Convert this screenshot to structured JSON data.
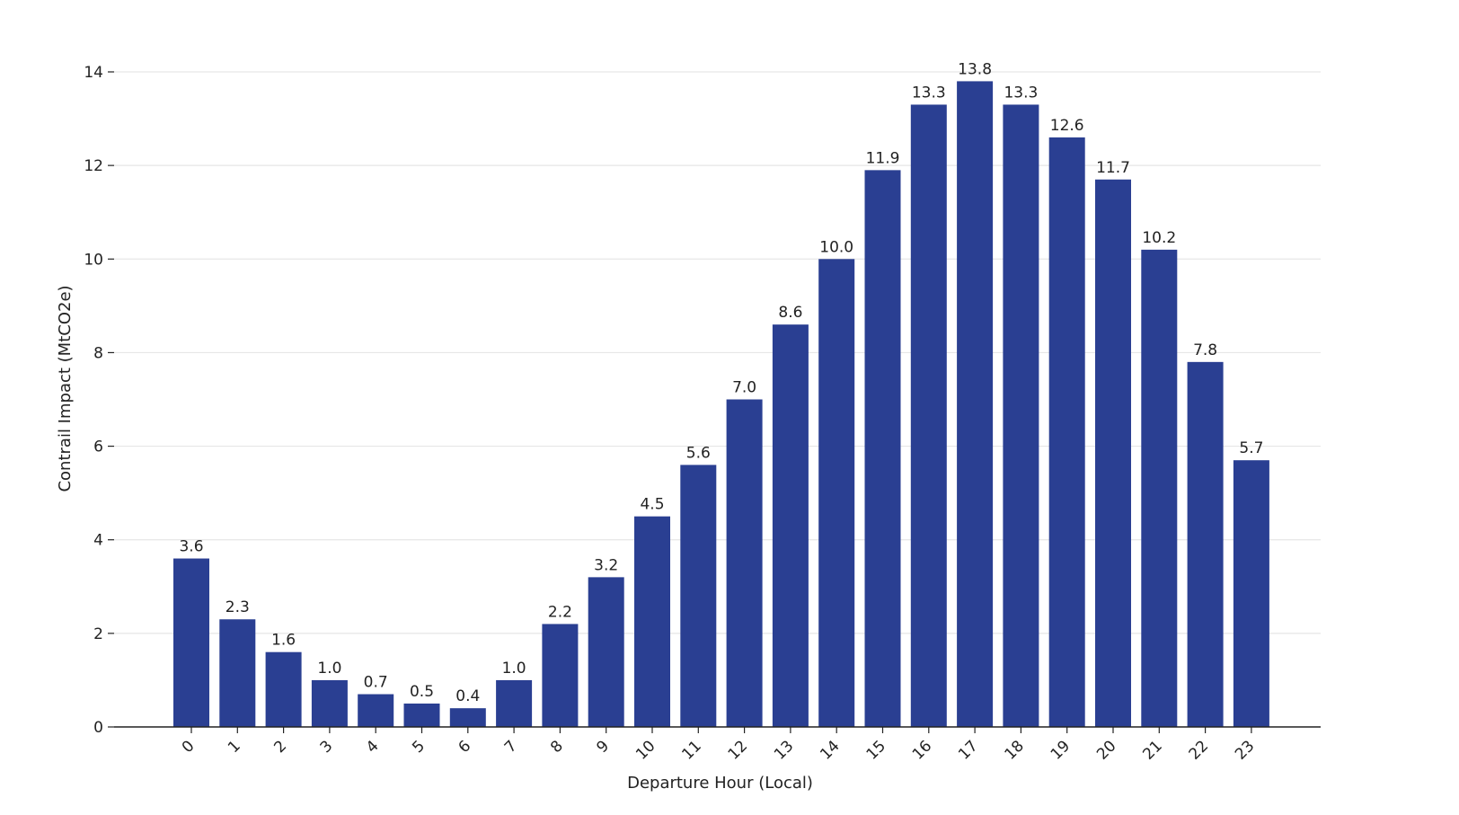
{
  "chart_data": {
    "type": "bar",
    "title": "",
    "xlabel": "Departure Hour (Local)",
    "ylabel": "Contrail Impact (MtCO2e)",
    "categories": [
      "0",
      "1",
      "2",
      "3",
      "4",
      "5",
      "6",
      "7",
      "8",
      "9",
      "10",
      "11",
      "12",
      "13",
      "14",
      "15",
      "16",
      "17",
      "18",
      "19",
      "20",
      "21",
      "22",
      "23"
    ],
    "values": [
      3.6,
      2.3,
      1.6,
      1.0,
      0.7,
      0.5,
      0.4,
      1.0,
      2.2,
      3.2,
      4.5,
      5.6,
      7.0,
      8.6,
      10.0,
      11.9,
      13.3,
      13.8,
      13.3,
      12.6,
      11.7,
      10.2,
      7.8,
      5.7
    ],
    "data_labels": [
      "3.6",
      "2.3",
      "1.6",
      "1.0",
      "0.7",
      "0.5",
      "0.4",
      "1.0",
      "2.2",
      "3.2",
      "4.5",
      "5.6",
      "7.0",
      "8.6",
      "10.0",
      "11.9",
      "13.3",
      "13.8",
      "13.3",
      "12.6",
      "11.7",
      "10.2",
      "7.8",
      "5.7"
    ],
    "ylim": [
      0,
      14
    ],
    "yticks": [
      0,
      2,
      4,
      6,
      8,
      10,
      12,
      14
    ],
    "grid": "horizontal",
    "legend": "none",
    "bar_color": "#2a3f92",
    "x_tick_rotation": "45 degrees"
  }
}
